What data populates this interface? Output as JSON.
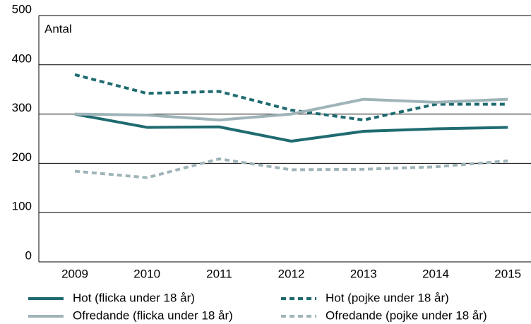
{
  "chart_data": {
    "type": "line",
    "y_label": "Antal",
    "categories": [
      "2009",
      "2010",
      "2011",
      "2012",
      "2013",
      "2014",
      "2015"
    ],
    "ylim": [
      0,
      500
    ],
    "yticks": [
      0,
      100,
      200,
      300,
      400,
      500
    ],
    "grid": true,
    "series": [
      {
        "name": "Hot (flicka under 18 år)",
        "color": "#1f6b70",
        "dashed": false,
        "values": [
          300,
          273,
          274,
          245,
          265,
          270,
          273
        ]
      },
      {
        "name": "Hot (pojke under 18 år)",
        "color": "#1f6b70",
        "dashed": true,
        "values": [
          380,
          342,
          346,
          308,
          288,
          320,
          320
        ]
      },
      {
        "name": "Ofredande (flicka under 18 år)",
        "color": "#9fb4b9",
        "dashed": false,
        "values": [
          300,
          298,
          288,
          300,
          330,
          324,
          330
        ]
      },
      {
        "name": "Ofredande (pojke under 18 år)",
        "color": "#9fb4b9",
        "dashed": true,
        "values": [
          184,
          171,
          209,
          187,
          188,
          193,
          205
        ]
      }
    ]
  }
}
